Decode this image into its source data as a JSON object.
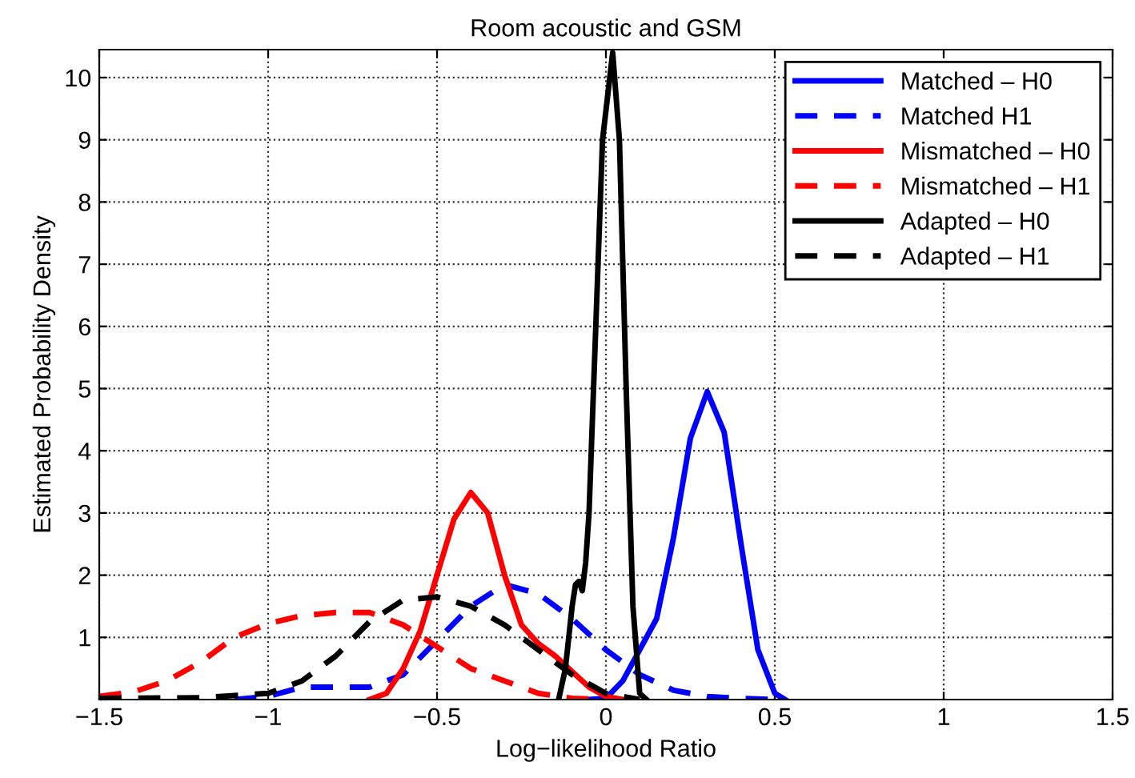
{
  "chart_data": {
    "type": "line",
    "title": "Room acoustic and GSM",
    "xlabel": "Log−likelihood Ratio",
    "ylabel": "Estimated Probability Density",
    "xlim": [
      -1.5,
      1.5
    ],
    "ylim": [
      0,
      10.45
    ],
    "xticks": [
      {
        "value": -1.5,
        "label": "−1.5"
      },
      {
        "value": -1,
        "label": "−1"
      },
      {
        "value": -0.5,
        "label": "−0.5"
      },
      0,
      0.5,
      1,
      1.5
    ],
    "yticks": [
      {
        "value": 0,
        "label": null
      },
      1,
      2,
      3,
      4,
      5,
      6,
      7,
      8,
      9,
      10
    ],
    "grid": true,
    "legend": "top right",
    "marker": "none",
    "series": [
      {
        "name": "Matched – H0",
        "color": "#0000ff",
        "line_style": "solid",
        "x": [
          -0.05,
          0,
          0.05,
          0.1,
          0.15,
          0.2,
          0.25,
          0.3,
          0.35,
          0.4,
          0.45,
          0.5,
          0.53
        ],
        "values": [
          0,
          0.02,
          0.3,
          0.8,
          1.3,
          2.6,
          4.2,
          4.95,
          4.3,
          2.5,
          0.8,
          0.1,
          0
        ]
      },
      {
        "name": "Matched H1",
        "color": "#0000ff",
        "line_style": "dashed",
        "x": [
          -1.1,
          -1,
          -0.9,
          -0.8,
          -0.7,
          -0.6,
          -0.5,
          -0.4,
          -0.3,
          -0.2,
          -0.1,
          0,
          0.1,
          0.2,
          0.3,
          0.4,
          0.5
        ],
        "values": [
          0,
          0.05,
          0.2,
          0.2,
          0.2,
          0.4,
          0.95,
          1.5,
          1.85,
          1.7,
          1.3,
          0.8,
          0.4,
          0.15,
          0.05,
          0.02,
          0
        ]
      },
      {
        "name": "Mismatched – H0",
        "color": "#ff0000",
        "line_style": "solid",
        "x": [
          -0.7,
          -0.65,
          -0.6,
          -0.55,
          -0.5,
          -0.45,
          -0.4,
          -0.35,
          -0.3,
          -0.25,
          -0.2,
          -0.15,
          -0.1,
          -0.05,
          0,
          0.05
        ],
        "values": [
          0,
          0.1,
          0.5,
          1.1,
          2.0,
          2.9,
          3.33,
          3.0,
          2.0,
          1.2,
          0.9,
          0.7,
          0.45,
          0.2,
          0.05,
          0
        ]
      },
      {
        "name": "Mismatched – H1",
        "color": "#ff0000",
        "line_style": "dashed",
        "x": [
          -1.5,
          -1.4,
          -1.3,
          -1.2,
          -1.1,
          -1,
          -0.9,
          -0.8,
          -0.7,
          -0.6,
          -0.5,
          -0.4,
          -0.3,
          -0.2,
          -0.1,
          0
        ],
        "values": [
          0.05,
          0.12,
          0.3,
          0.6,
          1.0,
          1.22,
          1.35,
          1.4,
          1.4,
          1.2,
          0.85,
          0.5,
          0.3,
          0.1,
          0.02,
          0
        ]
      },
      {
        "name": "Adapted – H0",
        "color": "#000000",
        "line_style": "solid",
        "x": [
          -0.14,
          -0.12,
          -0.1,
          -0.09,
          -0.08,
          -0.07,
          -0.06,
          -0.05,
          -0.03,
          -0.01,
          0.02,
          0.04,
          0.06,
          0.08,
          0.1,
          0.12
        ],
        "values": [
          0,
          0.5,
          1.5,
          1.85,
          1.9,
          1.75,
          2.2,
          3,
          6,
          9,
          10.4,
          9,
          5,
          1.5,
          0.1,
          0
        ]
      },
      {
        "name": "Adapted – H1",
        "color": "#000000",
        "line_style": "dashed",
        "x": [
          -1.5,
          -1.2,
          -1,
          -0.9,
          -0.8,
          -0.7,
          -0.6,
          -0.5,
          -0.4,
          -0.3,
          -0.2,
          -0.1,
          0,
          0.1
        ],
        "values": [
          0.02,
          0.03,
          0.1,
          0.3,
          0.7,
          1.25,
          1.6,
          1.65,
          1.5,
          1.2,
          0.8,
          0.4,
          0.1,
          0
        ]
      }
    ]
  }
}
